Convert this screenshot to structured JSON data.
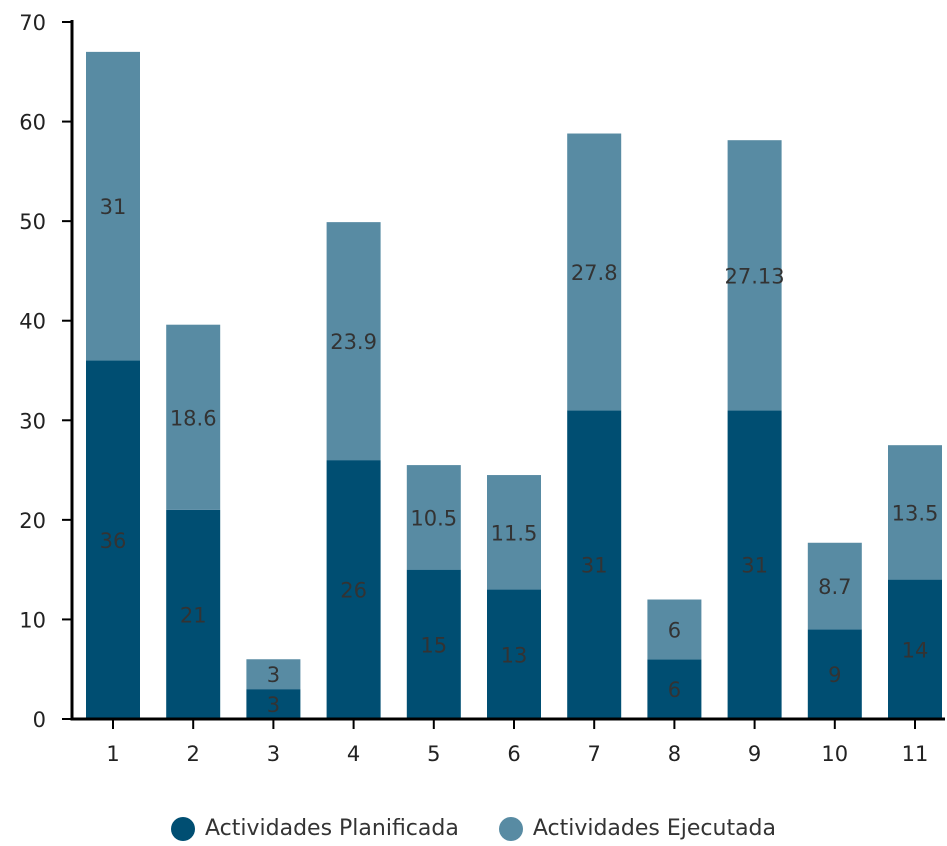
{
  "chart_data": {
    "type": "bar",
    "stacked": true,
    "categories": [
      "1",
      "2",
      "3",
      "4",
      "5",
      "6",
      "7",
      "8",
      "9",
      "10",
      "11"
    ],
    "series": [
      {
        "name": "Actividades Planificada",
        "values": [
          36,
          21,
          3,
          26,
          15,
          13,
          31,
          6,
          31,
          9,
          14
        ],
        "labels": [
          "36",
          "21",
          "3",
          "26",
          "15",
          "13",
          "31",
          "6",
          "31",
          "9",
          "14"
        ],
        "color": "#004E72"
      },
      {
        "name": "Actividades Ejecutada",
        "values": [
          31,
          18.6,
          3,
          23.9,
          10.5,
          11.5,
          27.8,
          6,
          27.13,
          8.7,
          13.5
        ],
        "labels": [
          "31",
          "18.6",
          "3",
          "23.9",
          "10.5",
          "11.5",
          "27.8",
          "6",
          "27.13",
          "8.7",
          "13.5"
        ],
        "color": "#588BA3"
      }
    ],
    "ylim": [
      0,
      70
    ],
    "yticks": [
      "0",
      "10",
      "20",
      "30",
      "40",
      "50",
      "60",
      "70"
    ],
    "xlabel": "",
    "ylabel": "",
    "grid": false,
    "legend_position": "bottom",
    "data_label_color": "#333333",
    "axis_color": "#000000",
    "tick_label_color": "#222222"
  }
}
